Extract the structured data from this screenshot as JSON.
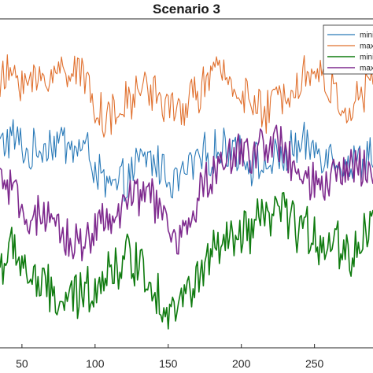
{
  "chart_data": {
    "type": "line",
    "title": "Scenario 3",
    "xlabel": "",
    "ylabel": "",
    "xlim": [
      35,
      290
    ],
    "ylim": [
      0,
      100
    ],
    "xticks": [
      50,
      100,
      150,
      200,
      250
    ],
    "grid": false,
    "legend": {
      "placement": "top-right",
      "entries": [
        "mini",
        "max",
        "mini",
        "max"
      ]
    },
    "x": [
      35,
      45,
      55,
      65,
      75,
      85,
      95,
      105,
      115,
      125,
      135,
      145,
      155,
      165,
      175,
      185,
      195,
      205,
      215,
      225,
      235,
      245,
      255,
      265,
      275,
      285,
      290
    ],
    "series": [
      {
        "name": "mini",
        "color": "#2a7ab8",
        "width": 1.1,
        "noise": 6,
        "values": [
          62,
          64,
          58,
          62,
          63,
          61,
          60,
          50,
          48,
          53,
          58,
          55,
          50,
          55,
          58,
          60,
          62,
          57,
          55,
          57,
          60,
          61,
          60,
          58,
          55,
          58,
          60
        ]
      },
      {
        "name": "max",
        "color": "#e0702e",
        "width": 1.1,
        "noise": 6,
        "values": [
          80,
          84,
          80,
          82,
          84,
          86,
          80,
          70,
          70,
          76,
          80,
          76,
          70,
          76,
          80,
          84,
          80,
          76,
          70,
          76,
          80,
          84,
          82,
          76,
          72,
          78,
          80
        ]
      },
      {
        "name": "mini",
        "color": "#0f7b0f",
        "width": 1.6,
        "noise": 7,
        "values": [
          25,
          30,
          22,
          18,
          14,
          14,
          18,
          22,
          25,
          28,
          23,
          14,
          12,
          17,
          25,
          30,
          32,
          35,
          38,
          42,
          38,
          35,
          33,
          32,
          28,
          35,
          40
        ]
      },
      {
        "name": "max",
        "color": "#7e2a8e",
        "width": 1.6,
        "noise": 6,
        "values": [
          52,
          45,
          40,
          38,
          35,
          32,
          34,
          38,
          40,
          45,
          48,
          42,
          30,
          40,
          50,
          55,
          58,
          60,
          62,
          62,
          55,
          50,
          48,
          52,
          56,
          55,
          55
        ]
      }
    ]
  }
}
